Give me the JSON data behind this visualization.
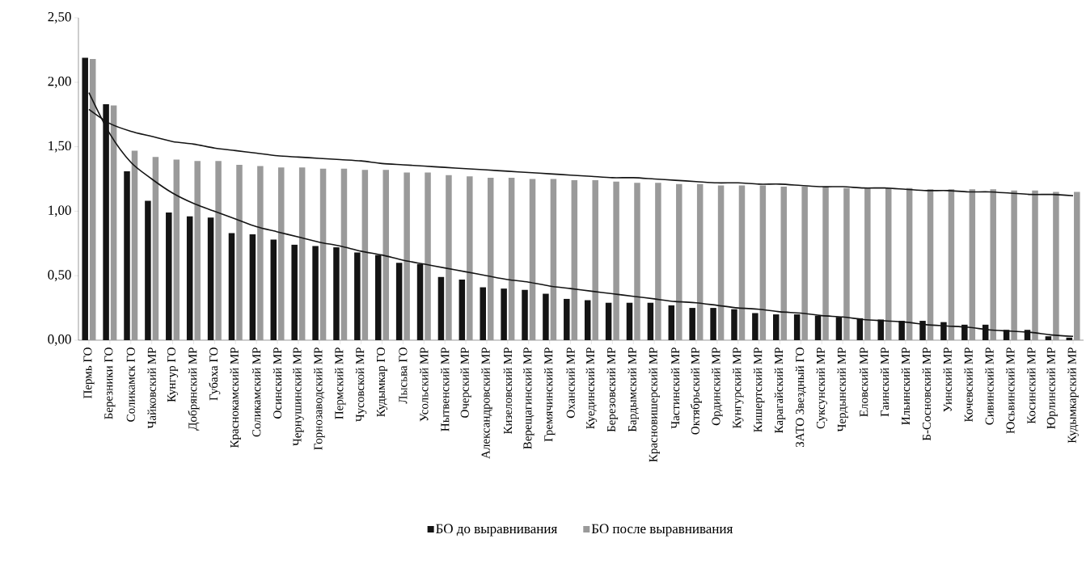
{
  "chart_data": {
    "type": "bar",
    "categories": [
      "Пермь ГО",
      "Березники ГО",
      "Соликамск ГО",
      "Чайковский МР",
      "Кунгур ГО",
      "Добрянский МР",
      "Губаха ГО",
      "Краснокамский МР",
      "Соликамский МР",
      "Осинский МР",
      "Чернушинский МР",
      "Горнозаводский МР",
      "Пермский МР",
      "Чусовской МР",
      "Кудымкар ГО",
      "Лысьва ГО",
      "Усольский МР",
      "Нытвенский МР",
      "Очерский МР",
      "Александровский МР",
      "Кизеловский МР",
      "Верещагинский МР",
      "Гремячинский МР",
      "Оханский МР",
      "Куединский МР",
      "Березовский МР",
      "Бардымский МР",
      "Красновишерский МР",
      "Частинский МР",
      "Октябрьский МР",
      "Ординский МР",
      "Кунгурский МР",
      "Кишертский МР",
      "Карагайский МР",
      "ЗАТО Звездный ГО",
      "Суксунский МР",
      "Чердынский МР",
      "Еловский МР",
      "Гаинский МР",
      "Ильинский МР",
      "Б-Сосновский МР",
      "Уинский МР",
      "Кочевский МР",
      "Сивинский МР",
      "Юсьвинский МР",
      "Косинский МР",
      "Юрлинский МР",
      "Кудымкарский МР"
    ],
    "series": [
      {
        "name": "БО до выравнивания",
        "color": "#141414",
        "values": [
          2.19,
          1.83,
          1.31,
          1.08,
          0.99,
          0.96,
          0.95,
          0.83,
          0.82,
          0.78,
          0.74,
          0.73,
          0.72,
          0.68,
          0.66,
          0.6,
          0.59,
          0.49,
          0.47,
          0.41,
          0.4,
          0.39,
          0.36,
          0.32,
          0.31,
          0.29,
          0.29,
          0.29,
          0.27,
          0.25,
          0.25,
          0.24,
          0.21,
          0.2,
          0.2,
          0.19,
          0.18,
          0.17,
          0.16,
          0.15,
          0.15,
          0.14,
          0.12,
          0.12,
          0.08,
          0.08,
          0.03,
          0.02
        ]
      },
      {
        "name": "БО после выравнивания",
        "color": "#9a9a9a",
        "values": [
          2.18,
          1.82,
          1.47,
          1.42,
          1.4,
          1.39,
          1.39,
          1.36,
          1.35,
          1.34,
          1.34,
          1.33,
          1.33,
          1.32,
          1.32,
          1.3,
          1.3,
          1.28,
          1.27,
          1.26,
          1.26,
          1.25,
          1.25,
          1.24,
          1.24,
          1.23,
          1.22,
          1.22,
          1.21,
          1.21,
          1.2,
          1.2,
          1.2,
          1.19,
          1.19,
          1.19,
          1.18,
          1.18,
          1.18,
          1.18,
          1.17,
          1.17,
          1.17,
          1.17,
          1.16,
          1.16,
          1.15,
          1.15
        ]
      },
      {
        "type": "line",
        "color": "#141414",
        "values": [
          1.79,
          1.68,
          1.62,
          1.58,
          1.54,
          1.52,
          1.49,
          1.47,
          1.45,
          1.43,
          1.42,
          1.41,
          1.4,
          1.39,
          1.37,
          1.36,
          1.35,
          1.34,
          1.33,
          1.32,
          1.31,
          1.3,
          1.29,
          1.28,
          1.27,
          1.26,
          1.26,
          1.25,
          1.24,
          1.23,
          1.22,
          1.22,
          1.21,
          1.21,
          1.2,
          1.19,
          1.19,
          1.18,
          1.18,
          1.17,
          1.16,
          1.16,
          1.15,
          1.15,
          1.14,
          1.13,
          1.13,
          1.12
        ]
      },
      {
        "type": "line",
        "color": "#141414",
        "values": [
          1.92,
          1.6,
          1.38,
          1.25,
          1.14,
          1.06,
          1.0,
          0.94,
          0.88,
          0.84,
          0.8,
          0.76,
          0.73,
          0.69,
          0.66,
          0.62,
          0.59,
          0.56,
          0.53,
          0.5,
          0.47,
          0.45,
          0.42,
          0.4,
          0.38,
          0.36,
          0.34,
          0.32,
          0.3,
          0.29,
          0.27,
          0.25,
          0.24,
          0.22,
          0.21,
          0.19,
          0.18,
          0.16,
          0.15,
          0.14,
          0.12,
          0.11,
          0.1,
          0.08,
          0.07,
          0.06,
          0.04,
          0.03
        ]
      }
    ],
    "ylim": [
      0,
      2.5
    ],
    "yticks": [
      {
        "value": 0,
        "label": "0,00"
      },
      {
        "value": 0.5,
        "label": "0,50"
      },
      {
        "value": 1,
        "label": "1,00"
      },
      {
        "value": 1.5,
        "label": "1,50"
      },
      {
        "value": 2,
        "label": "2,00"
      },
      {
        "value": 2.5,
        "label": "2,50"
      }
    ],
    "grid": false,
    "legend": "bottom"
  }
}
